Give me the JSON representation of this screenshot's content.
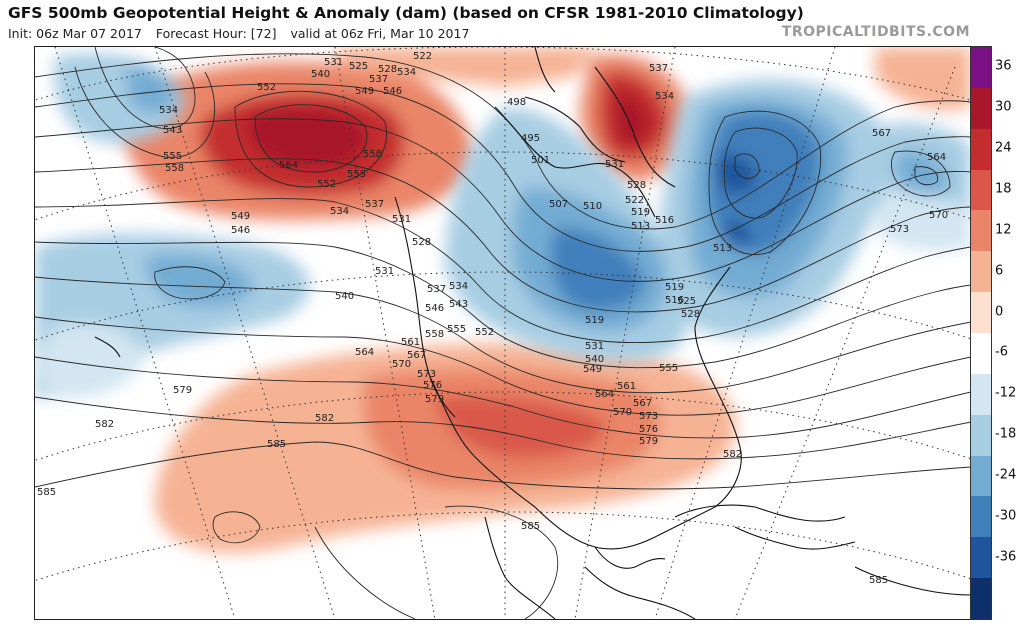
{
  "header": {
    "title": "GFS 500mb Geopotential Height & Anomaly (dam) (based on CFSR 1981-2010 Climatology)",
    "init": "Init: 06z Mar 07 2017",
    "forecast_hour": "Forecast Hour: [72]",
    "valid": "valid at 06z Fri, Mar 10 2017",
    "brand": "TROPICALTIDBITS.COM"
  },
  "colorbar": {
    "labels": [
      "36",
      "30",
      "24",
      "18",
      "12",
      "6",
      "0",
      "-6",
      "-12",
      "-18",
      "-24",
      "-30",
      "-36"
    ],
    "colors": [
      "#7b0f86",
      "#a8182a",
      "#c42d2f",
      "#d9584a",
      "#ea8568",
      "#f6b394",
      "#fde0cf",
      "#ffffff",
      "#d3e6f1",
      "#a7cde3",
      "#73acd3",
      "#3f7fbb",
      "#1f559c",
      "#0d2f6a"
    ]
  },
  "map": {
    "contour_labels": [
      "531",
      "525",
      "528",
      "522",
      "540",
      "537",
      "534",
      "552",
      "549",
      "546",
      "534",
      "543",
      "555",
      "558",
      "564",
      "558",
      "555",
      "552",
      "534",
      "537",
      "531",
      "549",
      "546",
      "528",
      "531",
      "540",
      "537",
      "534",
      "543",
      "546",
      "558",
      "555",
      "552",
      "564",
      "561",
      "567",
      "570",
      "573",
      "576",
      "579",
      "579",
      "582",
      "582",
      "585",
      "585",
      "585",
      "498",
      "501",
      "495",
      "507",
      "510",
      "513",
      "519",
      "516",
      "522",
      "528",
      "531",
      "534",
      "537",
      "519",
      "516",
      "513",
      "525",
      "528",
      "519",
      "531",
      "540",
      "549",
      "561",
      "564",
      "567",
      "570",
      "573",
      "576",
      "579",
      "582",
      "555",
      "567",
      "564",
      "573",
      "570",
      "585"
    ]
  }
}
